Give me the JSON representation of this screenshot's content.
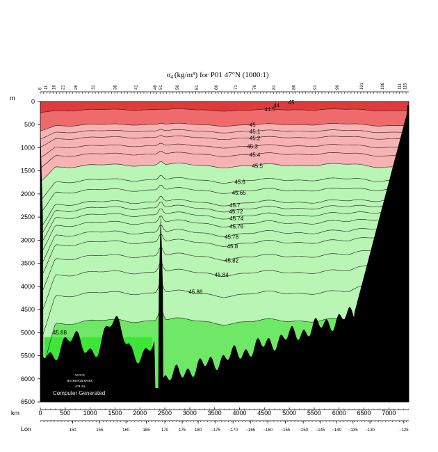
{
  "chart_data": {
    "type": "contour-section",
    "title_symbol": "σ",
    "title_subscript": "4",
    "title_units": "(kg/m³)",
    "title_rest": "for P01 47°N (1000:1)",
    "y_unit_label": "m",
    "x_unit_label": "km",
    "lon_label": "Lon",
    "depth_ticks": [
      0,
      500,
      1000,
      1500,
      2000,
      2500,
      3000,
      3500,
      4000,
      4500,
      5000,
      5500,
      6000,
      6500
    ],
    "distance_ticks": [
      0,
      500,
      1000,
      1500,
      2000,
      2500,
      3000,
      3500,
      4000,
      4500,
      5000,
      5500,
      6000,
      6500,
      7000
    ],
    "ylim": [
      0,
      6500
    ],
    "xlim": [
      0,
      7400
    ],
    "lon_ticks": [
      {
        "label": "150",
        "km": 650
      },
      {
        "label": "155",
        "km": 1190
      },
      {
        "label": "160",
        "km": 1720
      },
      {
        "label": "165",
        "km": 2130
      },
      {
        "label": "170",
        "km": 2500
      },
      {
        "label": "175",
        "km": 2850
      },
      {
        "label": "180",
        "km": 3170
      },
      {
        "label": "−175",
        "km": 3520
      },
      {
        "label": "−170",
        "km": 3870
      },
      {
        "label": "−165",
        "km": 4220
      },
      {
        "label": "−160",
        "km": 4570
      },
      {
        "label": "−155",
        "km": 4920
      },
      {
        "label": "−150",
        "km": 5280
      },
      {
        "label": "−145",
        "km": 5620
      },
      {
        "label": "−140",
        "km": 5950
      },
      {
        "label": "−135",
        "km": 6280
      },
      {
        "label": "−130",
        "km": 6620
      },
      {
        "label": "−125",
        "km": 7300
      }
    ],
    "station_ticks": [
      {
        "label": "6",
        "km": 20
      },
      {
        "label": "11",
        "km": 140
      },
      {
        "label": "16",
        "km": 300
      },
      {
        "label": "21",
        "km": 480
      },
      {
        "label": "26",
        "km": 740
      },
      {
        "label": "31",
        "km": 1090
      },
      {
        "label": "36",
        "km": 1530
      },
      {
        "label": "41",
        "km": 1950
      },
      {
        "label": "46",
        "km": 2330
      },
      {
        "label": "51",
        "km": 2440
      },
      {
        "label": "56",
        "km": 2780
      },
      {
        "label": "61",
        "km": 3170
      },
      {
        "label": "66",
        "km": 3560
      },
      {
        "label": "71",
        "km": 3950
      },
      {
        "label": "76",
        "km": 4330
      },
      {
        "label": "81",
        "km": 4720
      },
      {
        "label": "86",
        "km": 5120
      },
      {
        "label": "91",
        "km": 5540
      },
      {
        "label": "96",
        "km": 5990
      },
      {
        "label": "101",
        "km": 6480
      },
      {
        "label": "106",
        "km": 6900
      },
      {
        "label": "111",
        "km": 7240
      },
      {
        "label": "115",
        "km": 7350
      }
    ],
    "contours": [
      {
        "value": "44.5",
        "base_depth": 180,
        "label_km": 4500
      },
      {
        "value": "45",
        "base_depth": 500,
        "label_km": 4200
      },
      {
        "value": "45.1",
        "base_depth": 640,
        "label_km": 4200
      },
      {
        "value": "45.2",
        "base_depth": 780,
        "label_km": 4200
      },
      {
        "value": "45.3",
        "base_depth": 960,
        "label_km": 4150
      },
      {
        "value": "45.4",
        "base_depth": 1140,
        "label_km": 4200
      },
      {
        "value": "45.5",
        "base_depth": 1380,
        "label_km": 4250
      },
      {
        "value": "45.6",
        "base_depth": 1700,
        "label_km": 3900
      },
      {
        "value": "45.65",
        "base_depth": 1920,
        "label_km": 3850
      },
      {
        "value": "45.7",
        "base_depth": 2180,
        "label_km": 3800
      },
      {
        "value": "45.72",
        "base_depth": 2310,
        "label_km": 3790
      },
      {
        "value": "45.74",
        "base_depth": 2460,
        "label_km": 3800
      },
      {
        "value": "45.76",
        "base_depth": 2630,
        "label_km": 3800
      },
      {
        "value": "45.78",
        "base_depth": 2840,
        "label_km": 3700
      },
      {
        "value": "45.8",
        "base_depth": 3050,
        "label_km": 3750
      },
      {
        "value": "45.82",
        "base_depth": 3350,
        "label_km": 3700
      },
      {
        "value": "45.84",
        "base_depth": 3700,
        "label_km": 3500
      },
      {
        "value": "45.86",
        "base_depth": 4150,
        "label_km": 2980
      },
      {
        "value": "45.88",
        "base_depth": 4750,
        "label_km": 250
      }
    ],
    "surface_label": "45",
    "surface_label_km": 4980,
    "inset_label": "44",
    "inset_label_km": 4680
  },
  "credits": {
    "line1": "WOCE",
    "line2": "HYDROGRAPHIC",
    "line3": "ATLAS",
    "generated": "Computer Generated"
  },
  "colors": {
    "red_dark": "#e23a3a",
    "red": "#ef6b6b",
    "pink": "#f7b3b3",
    "green_light": "#b9f5b4",
    "green": "#a3f09e",
    "green_mid": "#8fec88",
    "green_deep": "#6ee866",
    "green_bright": "#3fe53a",
    "bottom": "#000000"
  }
}
